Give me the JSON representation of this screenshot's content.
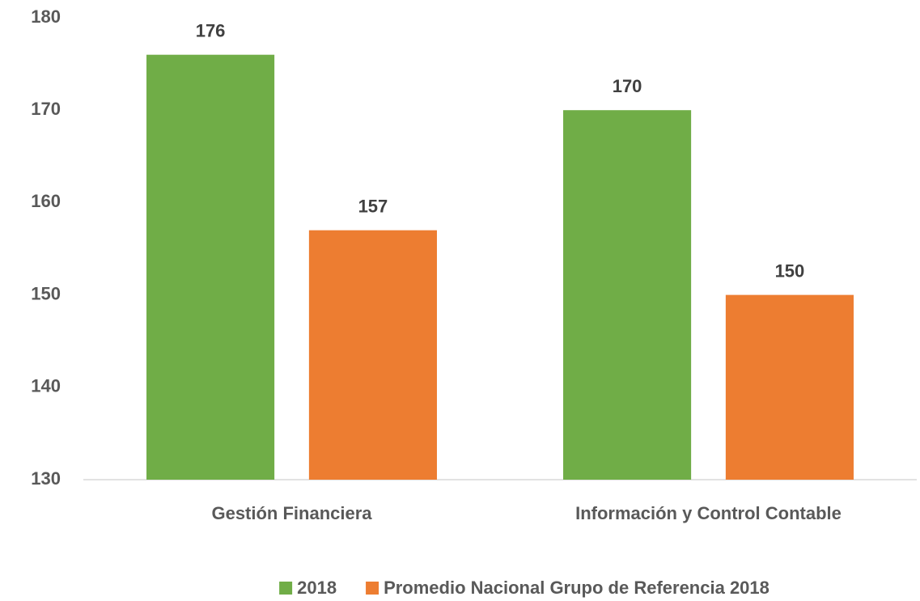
{
  "chart_data": {
    "type": "bar",
    "categories": [
      "Gestión Financiera",
      "Información y Control Contable"
    ],
    "series": [
      {
        "name": "2018",
        "color": "#70ad47",
        "values": [
          176,
          170
        ]
      },
      {
        "name": "Promedio Nacional Grupo de Referencia 2018",
        "color": "#ed7d31",
        "values": [
          157,
          150
        ]
      }
    ],
    "ylim": [
      130,
      180
    ],
    "yticks": [
      130,
      140,
      150,
      160,
      170,
      180
    ],
    "grid": false,
    "legend": "bottom"
  }
}
